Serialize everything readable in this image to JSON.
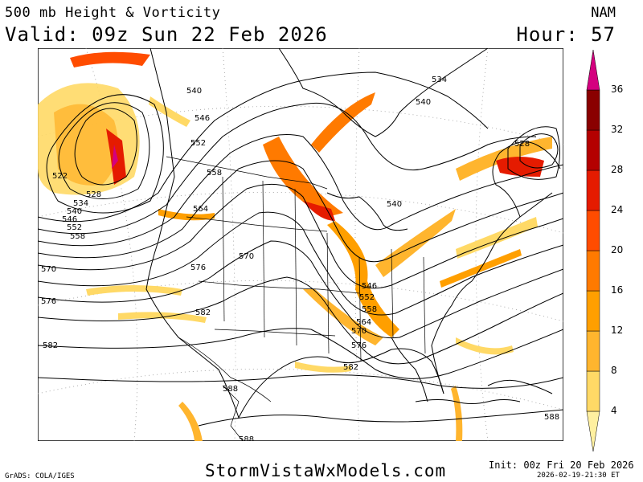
{
  "header": {
    "title": "500 mb Height & Vorticity",
    "valid": "Valid: 09z Sun 22 Feb 2026",
    "model": "NAM",
    "hour": "Hour: 57"
  },
  "footer": {
    "grads": "GrADS: COLA/IGES",
    "site": "StormVistaWxModels.com",
    "init": "Init: 00z Fri 20 Feb 2026",
    "generated": "2026-02-19-21:30 ET"
  },
  "colorbar": {
    "ticks": [
      "4",
      "8",
      "12",
      "16",
      "20",
      "24",
      "28",
      "32",
      "36"
    ],
    "colors": [
      "#fff0a0",
      "#ffd966",
      "#ffb52e",
      "#ff9f00",
      "#ff7a00",
      "#ff4c00",
      "#e51b00",
      "#b40000",
      "#8a0000",
      "#d4007f"
    ]
  },
  "contour_labels": [
    "540",
    "546",
    "552",
    "558",
    "564",
    "540",
    "534",
    "540",
    "528",
    "522",
    "528",
    "534",
    "540",
    "546",
    "552",
    "558",
    "570",
    "576",
    "570",
    "576",
    "582",
    "582",
    "546",
    "552",
    "558",
    "564",
    "570",
    "576",
    "582",
    "588",
    "588",
    "588",
    "540"
  ]
}
